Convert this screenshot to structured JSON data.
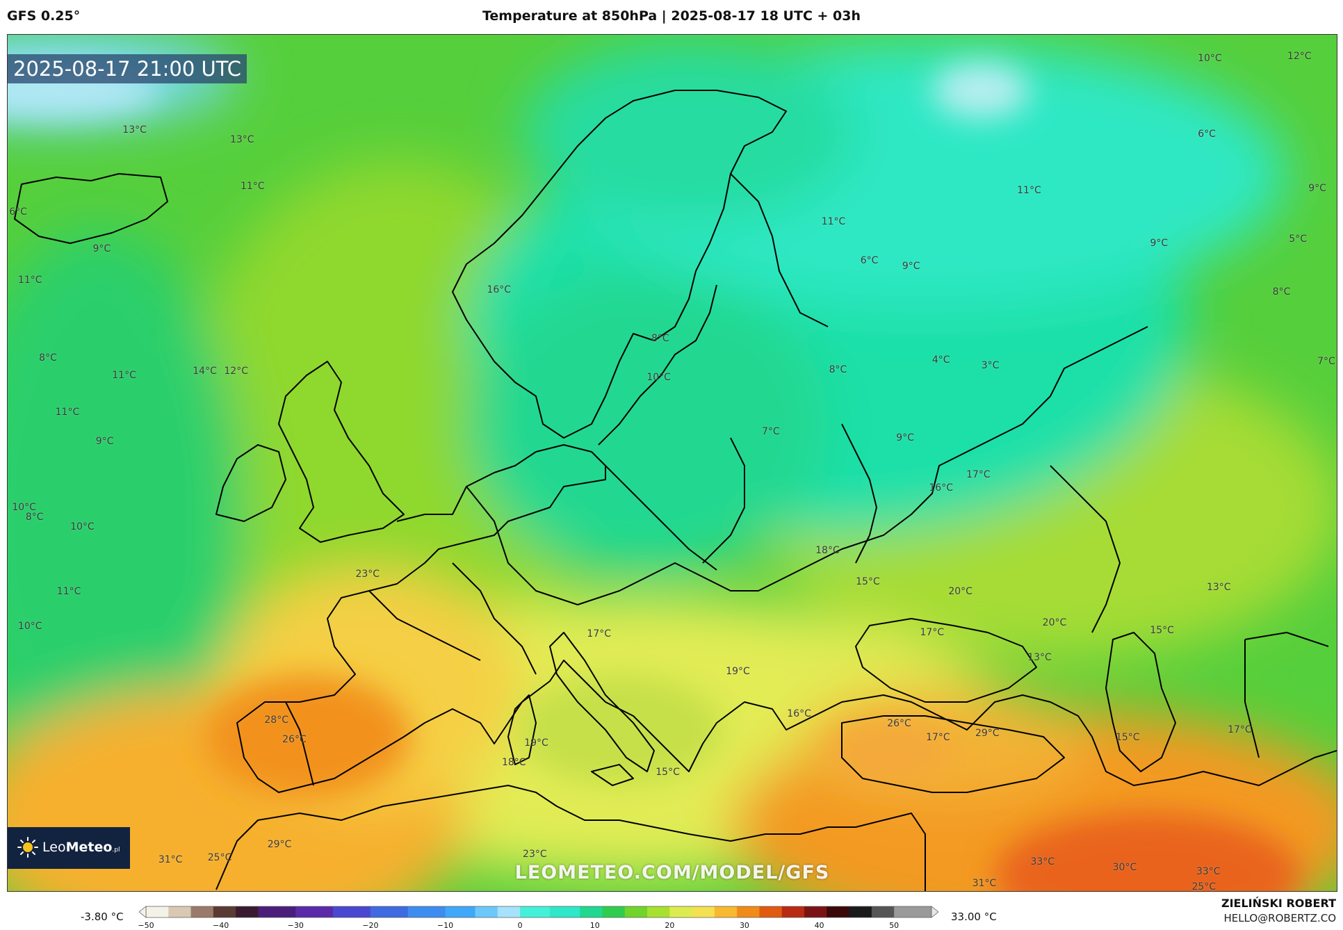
{
  "header": {
    "model": "GFS 0.25°",
    "title": "Temperature at 850hPa | 2025-08-17 18 UTC + 03h"
  },
  "map": {
    "timestamp": "2025-08-17 21:00 UTC",
    "watermark": "LEOMETEO.COM/MODEL/GFS",
    "logo": {
      "brand_light": "Leo",
      "brand_bold": "Meteo",
      "suffix": ".pl"
    },
    "temperature_labels": [
      {
        "text": "10°C",
        "lon": 51.0,
        "lat": 71.8
      },
      {
        "text": "12°C",
        "lon": 57.0,
        "lat": 71.9
      },
      {
        "text": "6°C",
        "lon": 50.8,
        "lat": 67.9
      },
      {
        "text": "11°C",
        "lon": 38.9,
        "lat": 65.0
      },
      {
        "text": "9°C",
        "lon": 58.2,
        "lat": 65.1
      },
      {
        "text": "9°C",
        "lon": 47.6,
        "lat": 62.3
      },
      {
        "text": "5°C",
        "lon": 56.9,
        "lat": 62.5
      },
      {
        "text": "8°C",
        "lon": 55.8,
        "lat": 59.8
      },
      {
        "text": "7°C",
        "lon": 58.8,
        "lat": 56.2
      },
      {
        "text": "3°C",
        "lon": 36.3,
        "lat": 56.0
      },
      {
        "text": "4°C",
        "lon": 33.0,
        "lat": 56.3
      },
      {
        "text": "11°C",
        "lon": 25.8,
        "lat": 63.4
      },
      {
        "text": "6°C",
        "lon": 28.2,
        "lat": 61.4
      },
      {
        "text": "9°C",
        "lon": 31.0,
        "lat": 61.1
      },
      {
        "text": "8°C",
        "lon": 26.1,
        "lat": 55.8
      },
      {
        "text": "9°C",
        "lon": 30.6,
        "lat": 52.3
      },
      {
        "text": "7°C",
        "lon": 21.6,
        "lat": 52.6
      },
      {
        "text": "8°C",
        "lon": 14.2,
        "lat": 57.4
      },
      {
        "text": "10°C",
        "lon": 14.1,
        "lat": 55.4
      },
      {
        "text": "16°C",
        "lon": 3.4,
        "lat": 59.9
      },
      {
        "text": "13°C",
        "lon": -21.0,
        "lat": 68.1
      },
      {
        "text": "13°C",
        "lon": -13.8,
        "lat": 67.6
      },
      {
        "text": "11°C",
        "lon": -13.1,
        "lat": 65.2
      },
      {
        "text": "6°C",
        "lon": -28.8,
        "lat": 63.9
      },
      {
        "text": "9°C",
        "lon": -23.2,
        "lat": 62.0
      },
      {
        "text": "11°C",
        "lon": -28.0,
        "lat": 60.4
      },
      {
        "text": "8°C",
        "lon": -26.8,
        "lat": 56.4
      },
      {
        "text": "11°C",
        "lon": -21.7,
        "lat": 55.5
      },
      {
        "text": "11°C",
        "lon": -25.5,
        "lat": 53.6
      },
      {
        "text": "14°C",
        "lon": -16.3,
        "lat": 55.7
      },
      {
        "text": "12°C",
        "lon": -14.2,
        "lat": 55.7
      },
      {
        "text": "9°C",
        "lon": -23.0,
        "lat": 52.1
      },
      {
        "text": "10°C",
        "lon": -28.4,
        "lat": 48.7
      },
      {
        "text": "8°C",
        "lon": -27.7,
        "lat": 48.2
      },
      {
        "text": "10°C",
        "lon": -24.5,
        "lat": 47.7
      },
      {
        "text": "11°C",
        "lon": -25.4,
        "lat": 44.4
      },
      {
        "text": "10°C",
        "lon": -28.0,
        "lat": 42.6
      },
      {
        "text": "23°C",
        "lon": -5.4,
        "lat": 45.3
      },
      {
        "text": "17°C",
        "lon": 10.1,
        "lat": 42.2
      },
      {
        "text": "28°C",
        "lon": -11.5,
        "lat": 37.8
      },
      {
        "text": "26°C",
        "lon": -10.3,
        "lat": 36.8
      },
      {
        "text": "19°C",
        "lon": 5.9,
        "lat": 36.6
      },
      {
        "text": "18°C",
        "lon": 4.4,
        "lat": 35.6
      },
      {
        "text": "15°C",
        "lon": 14.7,
        "lat": 35.1
      },
      {
        "text": "29°C",
        "lon": -11.3,
        "lat": 31.4
      },
      {
        "text": "31°C",
        "lon": -18.6,
        "lat": 30.6
      },
      {
        "text": "25°C",
        "lon": -15.3,
        "lat": 30.7
      },
      {
        "text": "23°C",
        "lon": 5.8,
        "lat": 30.9
      },
      {
        "text": "19°C",
        "lon": 19.4,
        "lat": 40.3
      },
      {
        "text": "16°C",
        "lon": 23.5,
        "lat": 38.1
      },
      {
        "text": "18°C",
        "lon": 25.4,
        "lat": 46.5
      },
      {
        "text": "15°C",
        "lon": 28.1,
        "lat": 44.9
      },
      {
        "text": "16°C",
        "lon": 33.0,
        "lat": 49.7
      },
      {
        "text": "17°C",
        "lon": 35.5,
        "lat": 50.4
      },
      {
        "text": "20°C",
        "lon": 34.3,
        "lat": 44.4
      },
      {
        "text": "17°C",
        "lon": 32.4,
        "lat": 42.3
      },
      {
        "text": "20°C",
        "lon": 40.6,
        "lat": 42.8
      },
      {
        "text": "13°C",
        "lon": 39.6,
        "lat": 41.0
      },
      {
        "text": "26°C",
        "lon": 30.2,
        "lat": 37.6
      },
      {
        "text": "17°C",
        "lon": 32.8,
        "lat": 36.9
      },
      {
        "text": "29°C",
        "lon": 36.1,
        "lat": 37.1
      },
      {
        "text": "13°C",
        "lon": 51.6,
        "lat": 44.6
      },
      {
        "text": "15°C",
        "lon": 47.8,
        "lat": 42.4
      },
      {
        "text": "17°C",
        "lon": 53.0,
        "lat": 37.3
      },
      {
        "text": "15°C",
        "lon": 45.5,
        "lat": 36.9
      },
      {
        "text": "33°C",
        "lon": 39.8,
        "lat": 30.5
      },
      {
        "text": "30°C",
        "lon": 45.3,
        "lat": 30.2
      },
      {
        "text": "33°C",
        "lon": 50.9,
        "lat": 30.0
      },
      {
        "text": "25°C",
        "lon": 50.6,
        "lat": 29.2
      },
      {
        "text": "31°C",
        "lon": 35.9,
        "lat": 29.4
      }
    ]
  },
  "colorbar": {
    "min_label": "-3.80 °C",
    "max_label": "33.00 °C",
    "ticks": [
      "−50",
      "−40",
      "−30",
      "−20",
      "−10",
      "0",
      "10",
      "20",
      "30",
      "40",
      "50"
    ],
    "tick_values": [
      -50,
      -40,
      -30,
      -20,
      -10,
      0,
      10,
      20,
      30,
      40,
      50
    ],
    "range": [
      -50,
      55
    ],
    "colors": [
      [
        -50,
        "#f4f2e8"
      ],
      [
        -47,
        "#d8c8b4"
      ],
      [
        -44,
        "#9a7a6a"
      ],
      [
        -41,
        "#5a3a32"
      ],
      [
        -38,
        "#3a1a30"
      ],
      [
        -35,
        "#4a1e7a"
      ],
      [
        -30,
        "#5a2aa8"
      ],
      [
        -25,
        "#4a48d0"
      ],
      [
        -20,
        "#3f6ae0"
      ],
      [
        -15,
        "#3d8cf0"
      ],
      [
        -10,
        "#3fa8f8"
      ],
      [
        -6,
        "#6cc8fa"
      ],
      [
        -3,
        "#a6e2fb"
      ],
      [
        0,
        "#44f0d8"
      ],
      [
        4,
        "#2ee8c8"
      ],
      [
        8,
        "#20d890"
      ],
      [
        11,
        "#30cc50"
      ],
      [
        14,
        "#70d42a"
      ],
      [
        17,
        "#a8e030"
      ],
      [
        20,
        "#dcec50"
      ],
      [
        23,
        "#f4e050"
      ],
      [
        26,
        "#f8b830"
      ],
      [
        29,
        "#f08a18"
      ],
      [
        32,
        "#e05a10"
      ],
      [
        35,
        "#b82a14"
      ],
      [
        38,
        "#7a1414"
      ],
      [
        41,
        "#3a0808"
      ],
      [
        44,
        "#1a1a1a"
      ],
      [
        47,
        "#555555"
      ],
      [
        50,
        "#9a9a9a"
      ],
      [
        55,
        "#e6e6e6"
      ]
    ]
  },
  "credits": {
    "author": "ZIELIŃSKI ROBERT",
    "email": "HELLO@ROBERTZ.CO"
  }
}
